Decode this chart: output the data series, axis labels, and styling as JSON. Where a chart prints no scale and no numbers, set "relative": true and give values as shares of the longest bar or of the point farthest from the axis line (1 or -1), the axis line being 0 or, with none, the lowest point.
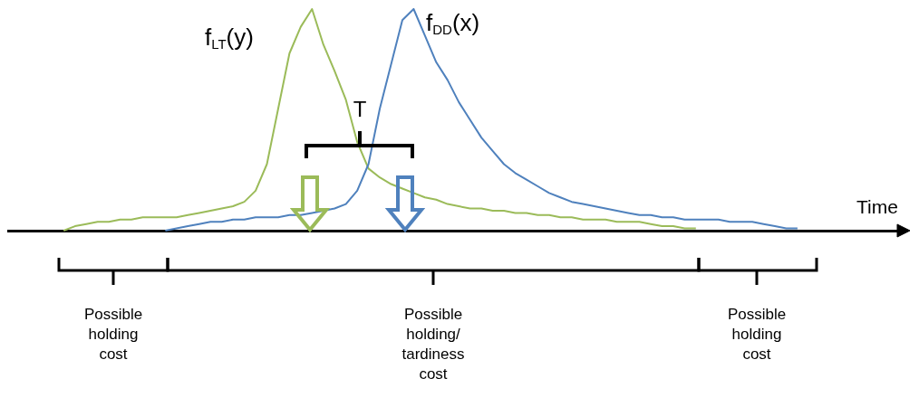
{
  "chart_data": {
    "type": "line",
    "relative": true,
    "xlabel": "Time",
    "categories": [
      null,
      null,
      null,
      null,
      null,
      null,
      null,
      null,
      null,
      null,
      null,
      null,
      null,
      null,
      null,
      null,
      null,
      null,
      null,
      null,
      null,
      null,
      null,
      null,
      null,
      null,
      null,
      null,
      null,
      null,
      null,
      null,
      null,
      null,
      null,
      null,
      null,
      null,
      null,
      null,
      null,
      null,
      null,
      null,
      null,
      null,
      null,
      null,
      null,
      null,
      null,
      null,
      null,
      null,
      null,
      null,
      null,
      null,
      null,
      null,
      null,
      null,
      null,
      null,
      null,
      null,
      null,
      null,
      null,
      null,
      null,
      null,
      null,
      null,
      null,
      null,
      null,
      null,
      null,
      null
    ],
    "series": [
      {
        "name": "f$_{LT}$(y)",
        "color": "#9bbb59",
        "values": [
          null,
          null,
          null,
          null,
          null,
          0,
          0.02,
          0.03,
          0.04,
          0.04,
          0.05,
          0.05,
          0.06,
          0.06,
          0.06,
          0.06,
          0.07,
          0.08,
          0.09,
          0.1,
          0.11,
          0.13,
          0.18,
          0.3,
          0.55,
          0.8,
          0.92,
          1,
          0.84,
          0.72,
          0.59,
          0.4,
          0.28,
          0.24,
          0.21,
          0.19,
          0.17,
          0.15,
          0.14,
          0.12,
          0.11,
          0.1,
          0.1,
          0.09,
          0.09,
          0.08,
          0.08,
          0.07,
          0.07,
          0.06,
          0.06,
          0.05,
          0.05,
          0.05,
          0.04,
          0.04,
          0.04,
          0.03,
          0.02,
          0.02,
          0.01,
          0.01,
          null,
          null,
          null,
          null,
          null,
          null,
          null,
          null,
          null,
          null,
          null,
          null,
          null,
          null,
          null,
          null,
          null,
          null
        ]
      },
      {
        "name": "f$_{DD}$(x)",
        "color": "#4f81bd",
        "values": [
          null,
          null,
          null,
          null,
          null,
          null,
          null,
          null,
          null,
          null,
          null,
          null,
          null,
          null,
          0,
          0.01,
          0.02,
          0.03,
          0.04,
          0.04,
          0.05,
          0.05,
          0.06,
          0.06,
          0.06,
          0.07,
          0.07,
          0.08,
          0.09,
          0.1,
          0.12,
          0.18,
          0.3,
          0.55,
          0.75,
          0.95,
          1,
          0.88,
          0.76,
          0.68,
          0.58,
          0.5,
          0.42,
          0.36,
          0.3,
          0.26,
          0.23,
          0.2,
          0.17,
          0.15,
          0.13,
          0.12,
          0.11,
          0.1,
          0.09,
          0.08,
          0.07,
          0.07,
          0.06,
          0.06,
          0.05,
          0.05,
          0.05,
          0.05,
          0.04,
          0.04,
          0.04,
          0.03,
          0.02,
          0.01,
          0.01,
          null,
          null,
          null,
          null,
          null,
          null,
          null,
          null,
          null
        ]
      }
    ],
    "annotations": [
      "T",
      "Possible holding cost",
      "Possible holding/tardiness cost",
      "Possible holding cost"
    ]
  }
}
